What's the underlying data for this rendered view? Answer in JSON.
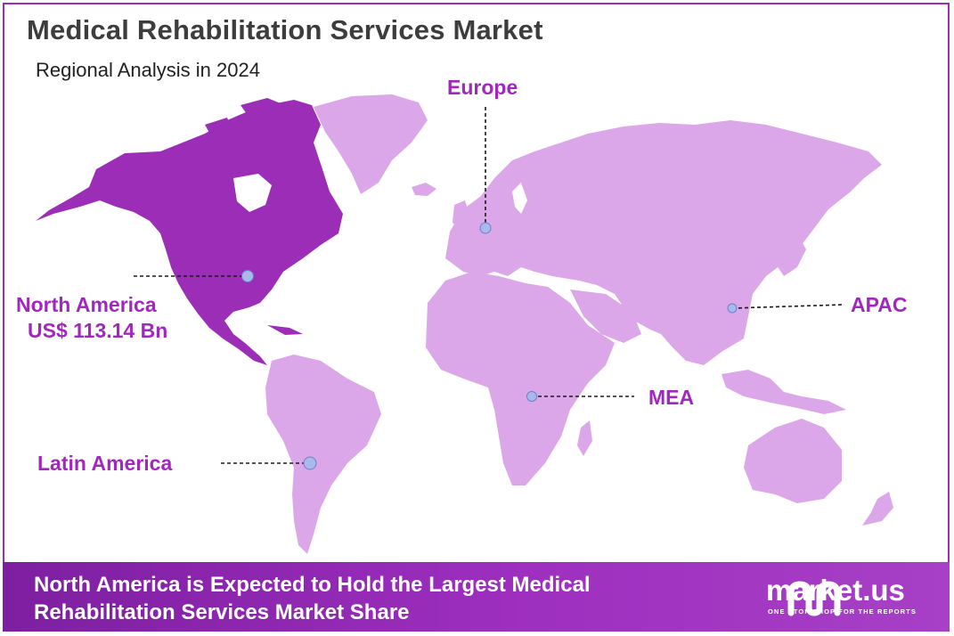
{
  "title": "Medical Rehabilitation Services Market",
  "subtitle": "Regional Analysis in 2024",
  "regions": {
    "north_america": {
      "name": "North America",
      "value": "US$ 113.14 Bn"
    },
    "europe": {
      "name": "Europe"
    },
    "apac": {
      "name": "APAC"
    },
    "mea": {
      "name": "MEA"
    },
    "latin_america": {
      "name": "Latin America"
    }
  },
  "footer": {
    "line1": "North America is Expected to Hold the Largest Medical",
    "line2": "Rehabilitation Services Market Share"
  },
  "brand": {
    "name": "market.us",
    "tagline": "ONE STOP SHOP FOR THE REPORTS",
    "icon": "market-us-logo-icon"
  },
  "colors": {
    "highlight": "#9b2db6",
    "land": "#dca7e9",
    "label": "#a227bd",
    "marker": "#a9b9ec"
  }
}
